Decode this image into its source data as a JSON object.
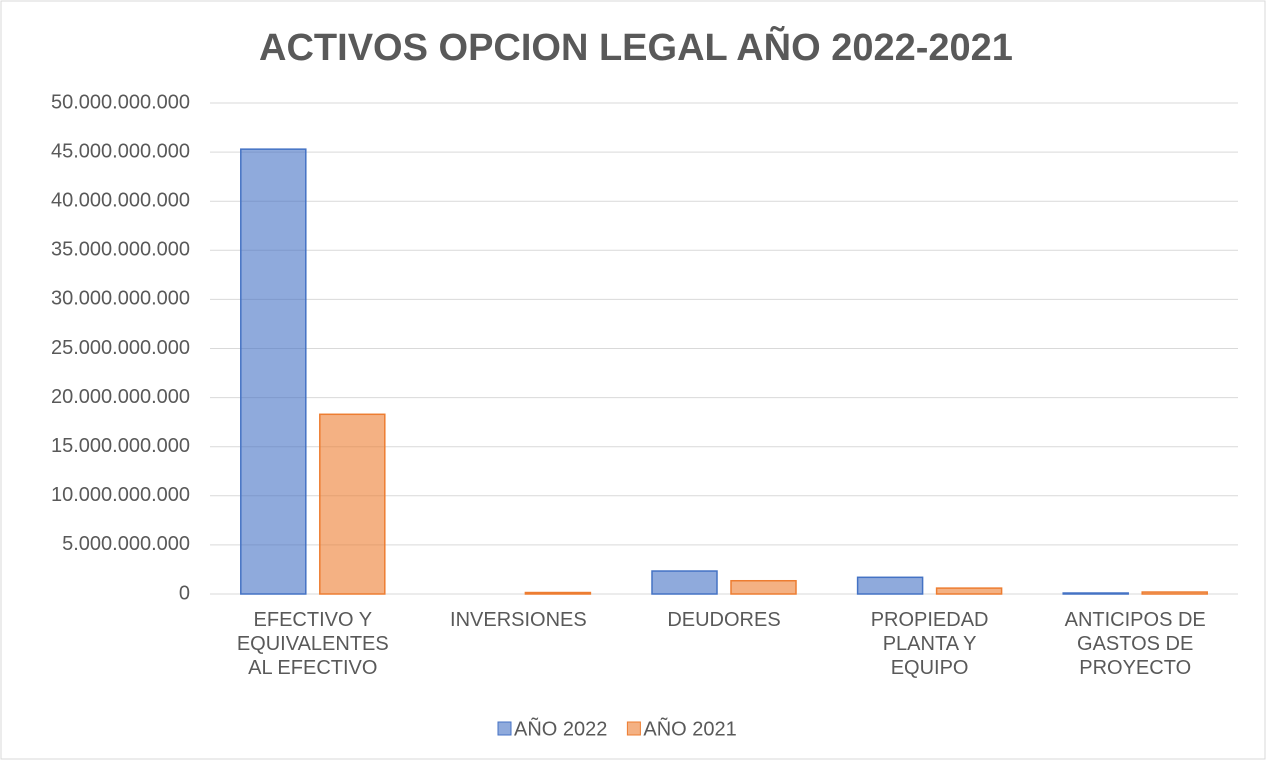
{
  "chart_data": {
    "type": "bar",
    "title": "ACTIVOS OPCION LEGAL AÑO 2022-2021",
    "categories": [
      "EFECTIVO Y EQUIVALENTES AL EFECTIVO",
      "INVERSIONES",
      "DEUDORES",
      "PROPIEDAD PLANTA Y EQUIPO",
      "ANTICIPOS DE GASTOS DE PROYECTO"
    ],
    "series": [
      {
        "name": "AÑO 2022",
        "color": "#4472c4",
        "values": [
          45300000000,
          0,
          2340000000,
          1700000000,
          100000000
        ]
      },
      {
        "name": "AÑO 2021",
        "color": "#ed7d31",
        "values": [
          18300000000,
          150000000,
          1350000000,
          600000000,
          200000000
        ]
      }
    ],
    "ylim": [
      0,
      50000000000
    ],
    "yticks": [
      0,
      {
        "value": 5000000000,
        "label": "5.000.000.000"
      },
      {
        "value": 10000000000,
        "label": "10.000.000.000"
      },
      {
        "value": 15000000000,
        "label": "15.000.000.000"
      },
      {
        "value": 20000000000,
        "label": "20.000.000.000"
      },
      {
        "value": 25000000000,
        "label": "25.000.000.000"
      },
      {
        "value": 30000000000,
        "label": "30.000.000.000"
      },
      {
        "value": 35000000000,
        "label": "35.000.000.000"
      },
      {
        "value": 40000000000,
        "label": "40.000.000.000"
      },
      {
        "value": 45000000000,
        "label": "45.000.000.000"
      },
      {
        "value": 50000000000,
        "label": "50.000.000.000"
      }
    ],
    "grid": true,
    "legend": "bottom"
  }
}
